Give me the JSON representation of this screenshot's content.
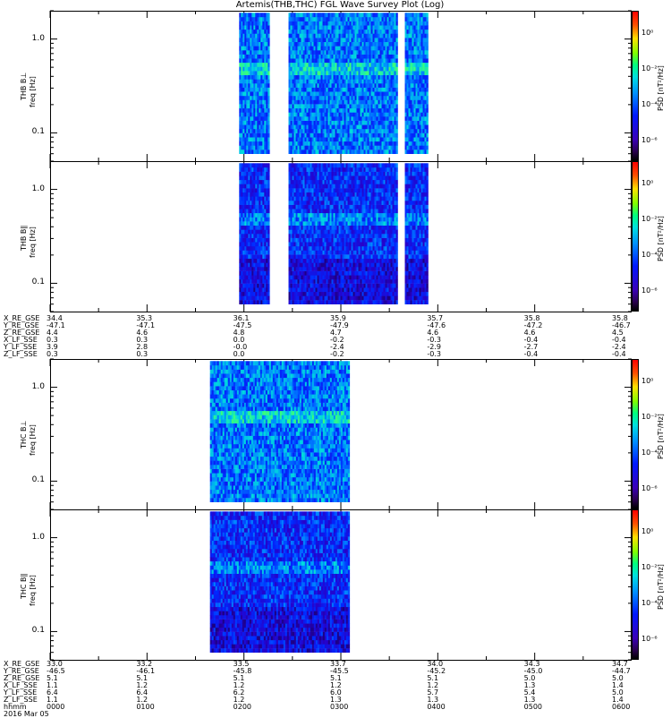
{
  "title": "Artemis(THB,THC) FGL Wave Survey Plot (Log)",
  "colorbar": {
    "label": "PSD [nT²/Hz]",
    "ticks": [
      "10⁰",
      "10⁻²",
      "10⁻⁴",
      "10⁻⁶"
    ]
  },
  "chart_data": [
    {
      "type": "heatmap",
      "panel": "THB B⊥",
      "ylabel_probe": "THB B⊥",
      "ylabel_axis": "freq [Hz]",
      "yscale": "log",
      "ylim": [
        0.05,
        2.0
      ],
      "yticks": [
        "1.0",
        "0.1"
      ],
      "data_intervals_hours": [
        [
          1.95,
          2.26
        ],
        [
          2.46,
          3.57
        ],
        [
          3.66,
          3.9
        ]
      ],
      "x_range_hours": [
        0,
        6
      ]
    },
    {
      "type": "heatmap",
      "panel": "THB B∥",
      "ylabel_probe": "THB B∥",
      "ylabel_axis": "freq [Hz]",
      "yscale": "log",
      "ylim": [
        0.05,
        2.0
      ],
      "yticks": [
        "1.0",
        "0.1"
      ],
      "data_intervals_hours": [
        [
          1.95,
          2.26
        ],
        [
          2.46,
          3.57
        ],
        [
          3.66,
          3.9
        ]
      ],
      "x_range_hours": [
        0,
        6
      ]
    },
    {
      "type": "heatmap",
      "panel": "THC B⊥",
      "ylabel_probe": "THC B⊥",
      "ylabel_axis": "freq [Hz]",
      "yscale": "log",
      "ylim": [
        0.05,
        2.0
      ],
      "yticks": [
        "1.0",
        "0.1"
      ],
      "data_intervals_hours": [
        [
          1.65,
          3.09
        ]
      ],
      "x_range_hours": [
        0,
        6
      ]
    },
    {
      "type": "heatmap",
      "panel": "THC B∥",
      "ylabel_probe": "THC B∥",
      "ylabel_axis": "freq [Hz]",
      "yscale": "log",
      "ylim": [
        0.05,
        2.0
      ],
      "yticks": [
        "1.0",
        "0.1"
      ],
      "data_intervals_hours": [
        [
          1.65,
          3.09
        ]
      ],
      "x_range_hours": [
        0,
        6
      ]
    }
  ],
  "ephemeris_thb": {
    "rows": [
      {
        "label": "X_RE_GSE",
        "values": [
          "34.4",
          "35.3",
          "36.1",
          "35.9",
          "35.7",
          "35.8",
          "35.8"
        ]
      },
      {
        "label": "Y_RE_GSE",
        "values": [
          "-47.1",
          "-47.1",
          "-47.5",
          "-47.9",
          "-47.6",
          "-47.2",
          "-46.7"
        ]
      },
      {
        "label": "Z_RE_GSE",
        "values": [
          "4.4",
          "4.6",
          "4.8",
          "4.7",
          "4.6",
          "4.6",
          "4.5"
        ]
      },
      {
        "label": "X_LF_SSE",
        "values": [
          "0.3",
          "0.3",
          "0.0",
          "-0.2",
          "-0.3",
          "-0.4",
          "-0.4"
        ]
      },
      {
        "label": "Y_LF_SSE",
        "values": [
          "3.9",
          "2.8",
          "-0.0",
          "-2.4",
          "-2.9",
          "-2.7",
          "-2.4"
        ]
      },
      {
        "label": "Z_LF_SSE",
        "values": [
          "0.3",
          "0.3",
          "0.0",
          "-0.2",
          "-0.3",
          "-0.4",
          "-0.4"
        ]
      }
    ]
  },
  "ephemeris_thc": {
    "rows": [
      {
        "label": "X_RE_GSE",
        "values": [
          "33.0",
          "33.2",
          "33.5",
          "33.7",
          "34.0",
          "34.3",
          "34.7"
        ]
      },
      {
        "label": "Y_RE_GSE",
        "values": [
          "-46.5",
          "-46.1",
          "-45.8",
          "-45.5",
          "-45.2",
          "-45.0",
          "-44.7"
        ]
      },
      {
        "label": "Z_RE_GSE",
        "values": [
          "5.1",
          "5.1",
          "5.1",
          "5.1",
          "5.1",
          "5.0",
          "5.0"
        ]
      },
      {
        "label": "X_LF_SSE",
        "values": [
          "1.1",
          "1.2",
          "1.2",
          "1.2",
          "1.2",
          "1.3",
          "1.4"
        ]
      },
      {
        "label": "Y_LF_SSE",
        "values": [
          "6.4",
          "6.4",
          "6.2",
          "6.0",
          "5.7",
          "5.4",
          "5.0"
        ]
      },
      {
        "label": "Z_LF_SSE",
        "values": [
          "1.1",
          "1.2",
          "1.2",
          "1.3",
          "1.3",
          "1.3",
          "1.4"
        ]
      },
      {
        "label": "hhmm",
        "values": [
          "0000",
          "0100",
          "0200",
          "0300",
          "0400",
          "0500",
          "0600"
        ]
      }
    ],
    "date": "2016 Mar 05"
  }
}
